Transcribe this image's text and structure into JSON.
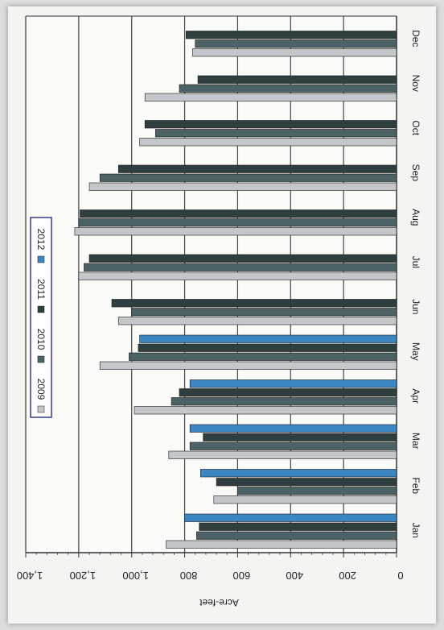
{
  "chart_data": {
    "type": "bar",
    "orientation": "horizontal",
    "image_rotated_180": true,
    "categories": [
      "Jan",
      "Feb",
      "Mar",
      "Apr",
      "May",
      "Jun",
      "Jul",
      "Aug",
      "Sep",
      "Oct",
      "Nov",
      "Dec"
    ],
    "series": [
      {
        "name": "2009",
        "color": "#c3c7c9",
        "values": [
          870,
          690,
          860,
          990,
          1120,
          1050,
          1200,
          1215,
          1160,
          970,
          950,
          770
        ]
      },
      {
        "name": "2010",
        "color": "#4d6265",
        "values": [
          755,
          600,
          780,
          850,
          1010,
          1000,
          1180,
          1200,
          1120,
          910,
          820,
          760
        ]
      },
      {
        "name": "2011",
        "color": "#2f3f40",
        "values": [
          745,
          680,
          730,
          820,
          975,
          1075,
          1160,
          1195,
          1050,
          950,
          750,
          795
        ]
      },
      {
        "name": "2012",
        "color": "#3c86c2",
        "values": [
          800,
          740,
          780,
          780,
          970,
          null,
          null,
          null,
          null,
          null,
          null,
          null
        ]
      }
    ],
    "xlabel": "",
    "ylabel": "Acre-feet",
    "value_axis": {
      "min": 0,
      "max": 1400,
      "step": 200
    },
    "tick_labels": [
      "0",
      "200",
      "400",
      "600",
      "800",
      "1,000",
      "1,200",
      "1,400"
    ],
    "grid": true,
    "legend_position": "top-left"
  }
}
